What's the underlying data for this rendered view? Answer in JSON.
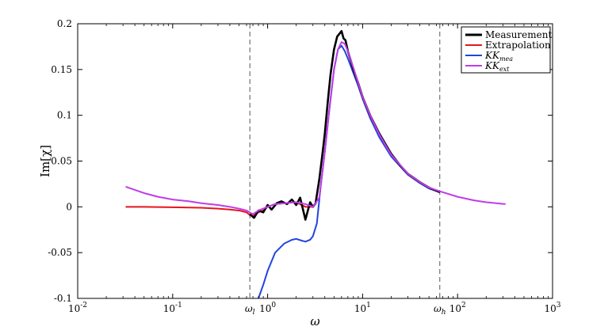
{
  "chart_data": {
    "type": "line",
    "title": "",
    "xlabel": "ω",
    "ylabel": "Im[χ]",
    "xscale": "log",
    "xlim": [
      0.01,
      1000
    ],
    "ylim": [
      -0.1,
      0.2
    ],
    "x_ticks": [
      {
        "value": 0.01,
        "base": "10",
        "exp": "-2"
      },
      {
        "value": 0.1,
        "base": "10",
        "exp": "-1"
      },
      {
        "value": 1,
        "base": "10",
        "exp": "0"
      },
      {
        "value": 10,
        "base": "10",
        "exp": "1"
      },
      {
        "value": 100,
        "base": "10",
        "exp": "2"
      },
      {
        "value": 1000,
        "base": "10",
        "exp": "3"
      }
    ],
    "y_ticks": [
      {
        "value": -0.1,
        "label": "-0.1"
      },
      {
        "value": -0.05,
        "label": "-0.05"
      },
      {
        "value": 0,
        "label": "0"
      },
      {
        "value": 0.05,
        "label": "0.05"
      },
      {
        "value": 0.1,
        "label": "0.1"
      },
      {
        "value": 0.15,
        "label": "0.15"
      },
      {
        "value": 0.2,
        "label": "0.2"
      }
    ],
    "grid": false,
    "legend_position": "top-right",
    "vlines": [
      {
        "x": 0.65,
        "label": "ω",
        "sub": "l"
      },
      {
        "x": 65,
        "label": "ω",
        "sub": "h"
      }
    ],
    "series": [
      {
        "name": "Measurement",
        "color": "#000000",
        "x": [
          0.65,
          0.72,
          0.8,
          0.9,
          1.0,
          1.1,
          1.25,
          1.4,
          1.6,
          1.8,
          2.0,
          2.2,
          2.5,
          2.8,
          3.0,
          3.2,
          3.5,
          3.8,
          4.0,
          4.3,
          4.6,
          5.0,
          5.4,
          5.8,
          6.0,
          6.3,
          6.6,
          7.0,
          7.5,
          8.0,
          9.0,
          10.0,
          12.0,
          15.0,
          20.0,
          25.0,
          30.0,
          40.0,
          50.0,
          65.0
        ],
        "y": [
          -0.008,
          -0.012,
          -0.004,
          -0.006,
          0.002,
          -0.003,
          0.004,
          0.006,
          0.003,
          0.008,
          0.002,
          0.01,
          -0.014,
          0.005,
          0.0,
          0.004,
          0.03,
          0.06,
          0.08,
          0.115,
          0.145,
          0.172,
          0.186,
          0.19,
          0.192,
          0.184,
          0.182,
          0.17,
          0.16,
          0.15,
          0.135,
          0.12,
          0.1,
          0.08,
          0.058,
          0.045,
          0.036,
          0.027,
          0.021,
          0.016
        ]
      },
      {
        "name": "Extrapolation",
        "color": "#e8131d",
        "x": [
          0.032,
          0.05,
          0.1,
          0.2,
          0.3,
          0.4,
          0.5,
          0.6,
          0.65,
          0.7,
          0.8,
          0.9,
          1.0,
          1.2,
          1.5,
          2.0,
          2.5,
          3.0,
          3.5
        ],
        "y": [
          0.0,
          0.0,
          -0.0005,
          -0.001,
          -0.002,
          -0.003,
          -0.004,
          -0.006,
          -0.009,
          -0.01,
          -0.006,
          -0.004,
          0.0,
          0.003,
          0.004,
          0.005,
          0.0,
          0.0,
          0.01
        ]
      },
      {
        "name": "KK_mea",
        "label_base": "KK",
        "label_sub": "mea",
        "color": "#2244dd",
        "x": [
          0.8,
          0.9,
          1.0,
          1.2,
          1.5,
          1.8,
          2.0,
          2.3,
          2.5,
          2.8,
          3.0,
          3.3,
          3.6,
          4.0,
          4.4,
          5.0,
          5.5,
          6.0,
          6.5,
          7.0,
          8.0,
          9.0,
          10.0,
          12.0,
          15.0,
          20.0,
          30.0,
          40.0,
          50.0,
          65.0
        ],
        "y": [
          -0.1,
          -0.085,
          -0.07,
          -0.05,
          -0.04,
          -0.036,
          -0.035,
          -0.037,
          -0.038,
          -0.036,
          -0.032,
          -0.018,
          0.02,
          0.06,
          0.1,
          0.15,
          0.172,
          0.176,
          0.17,
          0.162,
          0.146,
          0.132,
          0.118,
          0.097,
          0.076,
          0.055,
          0.035,
          0.026,
          0.02,
          0.016
        ]
      },
      {
        "name": "KK_ext",
        "label_base": "KK",
        "label_sub": "ext",
        "color": "#c03ce8",
        "x": [
          0.032,
          0.05,
          0.07,
          0.1,
          0.15,
          0.2,
          0.3,
          0.4,
          0.5,
          0.6,
          0.7,
          0.8,
          1.0,
          1.2,
          1.5,
          2.0,
          2.5,
          3.0,
          3.5,
          4.0,
          4.5,
          5.0,
          5.5,
          6.0,
          6.5,
          7.0,
          8.0,
          10.0,
          12.0,
          15.0,
          20.0,
          30.0,
          40.0,
          50.0,
          65.0,
          100.0,
          150.0,
          200.0,
          320.0
        ],
        "y": [
          0.022,
          0.015,
          0.011,
          0.008,
          0.006,
          0.004,
          0.002,
          0.0,
          -0.002,
          -0.004,
          -0.008,
          -0.004,
          0.0,
          0.003,
          0.004,
          0.005,
          0.003,
          0.0,
          0.01,
          0.06,
          0.11,
          0.15,
          0.172,
          0.18,
          0.178,
          0.17,
          0.152,
          0.12,
          0.1,
          0.079,
          0.057,
          0.036,
          0.027,
          0.021,
          0.017,
          0.011,
          0.007,
          0.005,
          0.003
        ]
      }
    ]
  }
}
